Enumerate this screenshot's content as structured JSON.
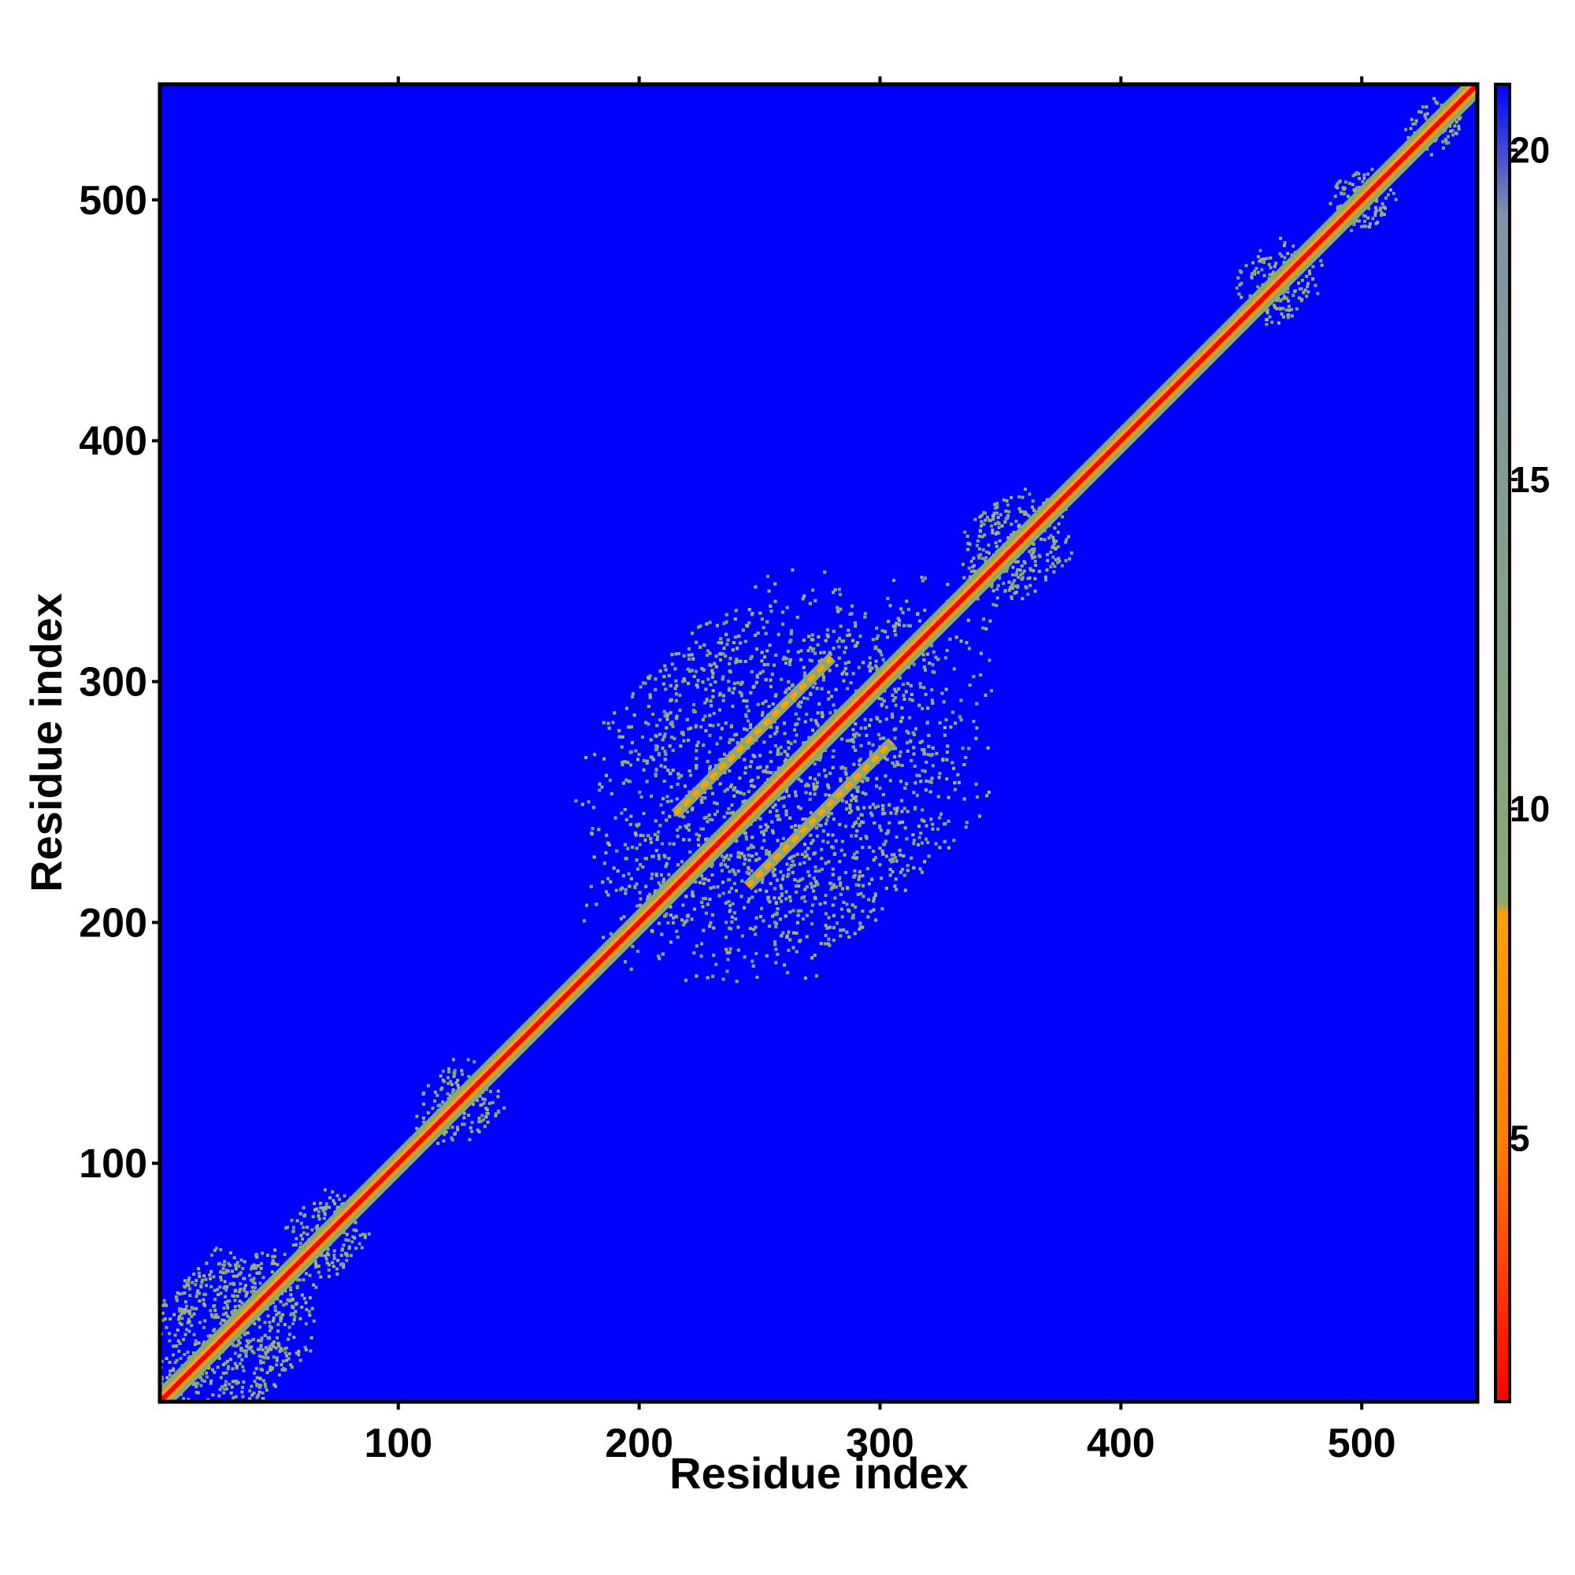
{
  "chart_data": {
    "type": "heatmap",
    "title": "",
    "xlabel": "Residue index",
    "ylabel": "Residue index",
    "xlim": [
      1,
      548
    ],
    "ylim": [
      1,
      548
    ],
    "x_ticks": [
      "100",
      "200",
      "300",
      "400",
      "500"
    ],
    "y_ticks": [
      "100",
      "200",
      "300",
      "400",
      "500"
    ],
    "grid": false,
    "background_value": 21,
    "colorbar": {
      "range": [
        1,
        21
      ],
      "ticks": [
        "5",
        "10",
        "15",
        "20"
      ],
      "colors": [
        "#ff0000",
        "#ff8000",
        "#ffa000",
        "#8aa872",
        "#7f94a8",
        "#0000ff"
      ]
    },
    "diagonal_band_residues": [
      1,
      548
    ],
    "compact_domains": [
      {
        "center": 30,
        "extent": 30
      },
      {
        "center": 70,
        "extent": 15
      },
      {
        "center": 125,
        "extent": 15
      },
      {
        "center": 260,
        "extent": 70
      },
      {
        "center": 355,
        "extent": 20
      },
      {
        "center": 465,
        "extent": 15
      },
      {
        "center": 500,
        "extent": 12
      },
      {
        "center": 530,
        "extent": 10
      }
    ],
    "off_diagonal_contacts": [
      {
        "x_from": 215,
        "x_to": 280,
        "y_from": 245,
        "y_to": 310
      },
      {
        "x_from": 245,
        "x_to": 305,
        "y_from": 215,
        "y_to": 275
      }
    ]
  }
}
